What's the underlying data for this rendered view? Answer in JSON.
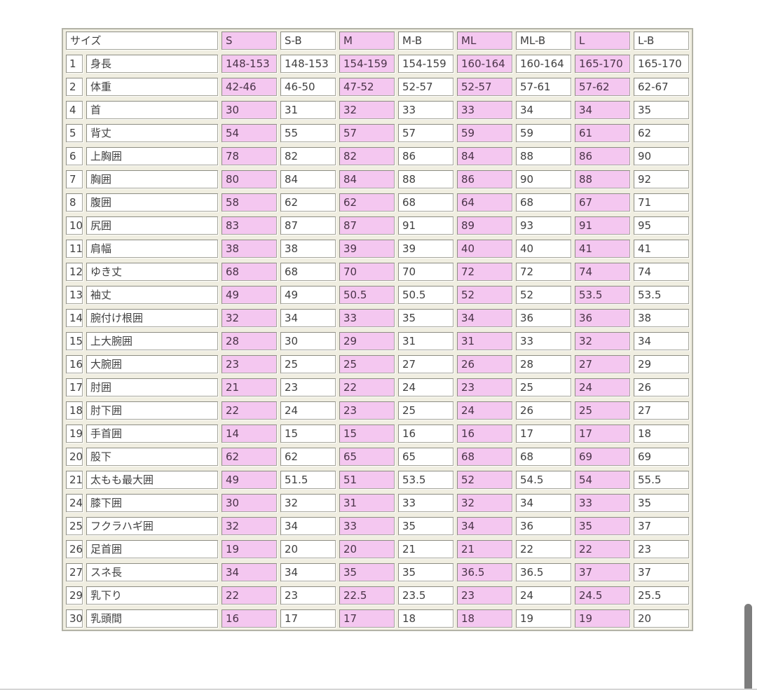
{
  "table": {
    "corner_label": "サイズ",
    "size_columns": [
      "S",
      "S-B",
      "M",
      "M-B",
      "ML",
      "ML-B",
      "L",
      "L-B"
    ],
    "highlighted_column_indexes": [
      0,
      2,
      4,
      6
    ],
    "highlight_color": "#f4c7f0",
    "rows": [
      {
        "num": "1",
        "label": "身長",
        "values": [
          "148-153",
          "148-153",
          "154-159",
          "154-159",
          "160-164",
          "160-164",
          "165-170",
          "165-170"
        ]
      },
      {
        "num": "2",
        "label": "体重",
        "values": [
          "42-46",
          "46-50",
          "47-52",
          "52-57",
          "52-57",
          "57-61",
          "57-62",
          "62-67"
        ]
      },
      {
        "num": "4",
        "label": "首",
        "values": [
          "30",
          "31",
          "32",
          "33",
          "33",
          "34",
          "34",
          "35"
        ]
      },
      {
        "num": "5",
        "label": "背丈",
        "values": [
          "54",
          "55",
          "57",
          "57",
          "59",
          "59",
          "61",
          "62"
        ]
      },
      {
        "num": "6",
        "label": "上胸囲",
        "values": [
          "78",
          "82",
          "82",
          "86",
          "84",
          "88",
          "86",
          "90"
        ]
      },
      {
        "num": "7",
        "label": "胸囲",
        "values": [
          "80",
          "84",
          "84",
          "88",
          "86",
          "90",
          "88",
          "92"
        ]
      },
      {
        "num": "8",
        "label": "腹囲",
        "values": [
          "58",
          "62",
          "62",
          "68",
          "64",
          "68",
          "67",
          "71"
        ]
      },
      {
        "num": "10",
        "label": "尻囲",
        "values": [
          "83",
          "87",
          "87",
          "91",
          "89",
          "93",
          "91",
          "95"
        ]
      },
      {
        "num": "11",
        "label": "肩幅",
        "values": [
          "38",
          "38",
          "39",
          "39",
          "40",
          "40",
          "41",
          "41"
        ]
      },
      {
        "num": "12",
        "label": "ゆき丈",
        "values": [
          "68",
          "68",
          "70",
          "70",
          "72",
          "72",
          "74",
          "74"
        ]
      },
      {
        "num": "13",
        "label": "袖丈",
        "values": [
          "49",
          "49",
          "50.5",
          "50.5",
          "52",
          "52",
          "53.5",
          "53.5"
        ]
      },
      {
        "num": "14",
        "label": "腕付け根囲",
        "values": [
          "32",
          "34",
          "33",
          "35",
          "34",
          "36",
          "36",
          "38"
        ]
      },
      {
        "num": "15",
        "label": "上大腕囲",
        "values": [
          "28",
          "30",
          "29",
          "31",
          "31",
          "33",
          "32",
          "34"
        ]
      },
      {
        "num": "16",
        "label": "大腕囲",
        "values": [
          "23",
          "25",
          "25",
          "27",
          "26",
          "28",
          "27",
          "29"
        ]
      },
      {
        "num": "17",
        "label": "肘囲",
        "values": [
          "21",
          "23",
          "22",
          "24",
          "23",
          "25",
          "24",
          "26"
        ]
      },
      {
        "num": "18",
        "label": "肘下囲",
        "values": [
          "22",
          "24",
          "23",
          "25",
          "24",
          "26",
          "25",
          "27"
        ]
      },
      {
        "num": "19",
        "label": "手首囲",
        "values": [
          "14",
          "15",
          "15",
          "16",
          "16",
          "17",
          "17",
          "18"
        ]
      },
      {
        "num": "20",
        "label": "股下",
        "values": [
          "62",
          "62",
          "65",
          "65",
          "68",
          "68",
          "69",
          "69"
        ]
      },
      {
        "num": "21",
        "label": "太もも最大囲",
        "values": [
          "49",
          "51.5",
          "51",
          "53.5",
          "52",
          "54.5",
          "54",
          "55.5"
        ]
      },
      {
        "num": "24",
        "label": "膝下囲",
        "values": [
          "30",
          "32",
          "31",
          "33",
          "32",
          "34",
          "33",
          "35"
        ]
      },
      {
        "num": "25",
        "label": "フクラハギ囲",
        "values": [
          "32",
          "34",
          "33",
          "35",
          "34",
          "36",
          "35",
          "37"
        ]
      },
      {
        "num": "26",
        "label": "足首囲",
        "values": [
          "19",
          "20",
          "20",
          "21",
          "21",
          "22",
          "22",
          "23"
        ]
      },
      {
        "num": "27",
        "label": "スネ長",
        "values": [
          "34",
          "34",
          "35",
          "35",
          "36.5",
          "36.5",
          "37",
          "37"
        ]
      },
      {
        "num": "29",
        "label": "乳下り",
        "values": [
          "22",
          "23",
          "22.5",
          "23.5",
          "23",
          "24",
          "24.5",
          "25.5"
        ]
      },
      {
        "num": "30",
        "label": "乳頭間",
        "values": [
          "16",
          "17",
          "17",
          "18",
          "18",
          "19",
          "19",
          "20"
        ]
      }
    ]
  }
}
